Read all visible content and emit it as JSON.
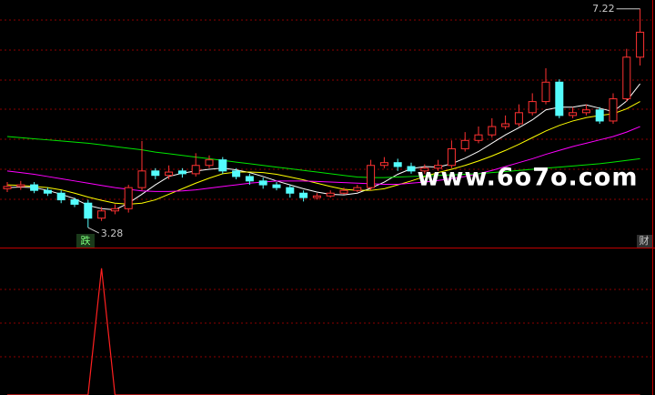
{
  "chart_data": [
    {
      "type": "candlestick",
      "up_color": "#ff3232",
      "down_color": "#54fcfc",
      "ylim": [
        2.92,
        7.38
      ],
      "open": [
        3.98,
        4.02,
        4.05,
        3.95,
        3.9,
        3.78,
        3.72,
        3.45,
        3.58,
        3.62,
        4.0,
        4.3,
        4.22,
        4.3,
        4.25,
        4.4,
        4.5,
        4.3,
        4.2,
        4.12,
        4.05,
        4.0,
        3.9,
        3.82,
        3.85,
        3.9,
        3.95,
        4.0,
        4.4,
        4.45,
        4.38,
        4.3,
        4.35,
        4.4,
        4.7,
        4.85,
        4.95,
        5.1,
        5.15,
        5.35,
        5.55,
        5.9,
        5.3,
        5.35,
        5.4,
        5.2,
        5.6,
        6.35
      ],
      "high": [
        4.1,
        4.12,
        4.1,
        4.0,
        3.95,
        3.82,
        3.78,
        3.65,
        3.7,
        4.05,
        4.84,
        4.35,
        4.4,
        4.35,
        4.62,
        4.58,
        4.55,
        4.35,
        4.25,
        4.18,
        4.1,
        4.05,
        3.95,
        3.9,
        3.95,
        4.0,
        4.05,
        4.5,
        4.55,
        4.52,
        4.45,
        4.42,
        4.5,
        4.85,
        5.0,
        5.1,
        5.25,
        5.3,
        5.5,
        5.7,
        6.15,
        5.95,
        5.45,
        5.5,
        5.45,
        5.7,
        6.5,
        7.22
      ],
      "low": [
        3.92,
        3.96,
        3.9,
        3.85,
        3.72,
        3.65,
        3.28,
        3.4,
        3.52,
        3.55,
        3.95,
        4.15,
        4.15,
        4.18,
        4.2,
        4.35,
        4.25,
        4.15,
        4.05,
        3.98,
        3.95,
        3.82,
        3.75,
        3.78,
        3.82,
        3.88,
        3.92,
        3.95,
        4.35,
        4.3,
        4.25,
        4.25,
        4.3,
        4.35,
        4.65,
        4.8,
        4.9,
        5.05,
        5.1,
        5.3,
        5.5,
        5.25,
        5.25,
        5.3,
        5.15,
        5.15,
        5.55,
        6.2
      ],
      "close": [
        4.02,
        4.05,
        3.95,
        3.9,
        3.78,
        3.7,
        3.45,
        3.58,
        3.62,
        4.0,
        4.3,
        4.22,
        4.28,
        4.25,
        4.4,
        4.5,
        4.3,
        4.2,
        4.12,
        4.05,
        4.0,
        3.9,
        3.82,
        3.85,
        3.9,
        3.95,
        4.0,
        4.4,
        4.45,
        4.38,
        4.3,
        4.35,
        4.4,
        4.7,
        4.85,
        4.95,
        5.1,
        5.15,
        5.35,
        5.55,
        5.9,
        5.3,
        5.35,
        5.4,
        5.2,
        5.6,
        6.35,
        6.8
      ],
      "series": [
        {
          "color": "#ffffff",
          "values": [
            4.0,
            4.01,
            4.0,
            3.95,
            3.88,
            3.8,
            3.68,
            3.62,
            3.6,
            3.72,
            3.88,
            4.05,
            4.2,
            4.26,
            4.3,
            4.33,
            4.35,
            4.32,
            4.27,
            4.2,
            4.12,
            4.05,
            3.98,
            3.92,
            3.88,
            3.87,
            3.9,
            3.99,
            4.1,
            4.24,
            4.34,
            4.38,
            4.37,
            4.43,
            4.53,
            4.65,
            4.8,
            4.95,
            5.08,
            5.22,
            5.4,
            5.45,
            5.45,
            5.49,
            5.43,
            5.37,
            5.56,
            5.87
          ]
        },
        {
          "color": "#ffff00",
          "values": [
            4.05,
            4.04,
            4.02,
            4.0,
            3.96,
            3.9,
            3.83,
            3.77,
            3.72,
            3.7,
            3.72,
            3.78,
            3.88,
            3.98,
            4.08,
            4.17,
            4.25,
            4.28,
            4.28,
            4.27,
            4.24,
            4.19,
            4.14,
            4.08,
            4.02,
            3.97,
            3.95,
            3.95,
            3.98,
            4.05,
            4.12,
            4.2,
            4.27,
            4.33,
            4.4,
            4.48,
            4.57,
            4.67,
            4.78,
            4.9,
            5.02,
            5.12,
            5.2,
            5.26,
            5.3,
            5.33,
            5.42,
            5.55
          ]
        },
        {
          "color": "#ff00ff",
          "values": [
            4.3,
            4.27,
            4.24,
            4.2,
            4.16,
            4.12,
            4.08,
            4.04,
            4.0,
            3.97,
            3.94,
            3.93,
            3.93,
            3.94,
            3.96,
            3.99,
            4.02,
            4.05,
            4.08,
            4.1,
            4.12,
            4.12,
            4.12,
            4.11,
            4.1,
            4.09,
            4.08,
            4.07,
            4.06,
            4.06,
            4.08,
            4.1,
            4.13,
            4.16,
            4.2,
            4.25,
            4.31,
            4.38,
            4.45,
            4.52,
            4.6,
            4.67,
            4.74,
            4.8,
            4.86,
            4.92,
            5.0,
            5.1
          ]
        },
        {
          "color": "#00e600",
          "values": [
            4.92,
            4.9,
            4.88,
            4.86,
            4.84,
            4.82,
            4.8,
            4.77,
            4.74,
            4.71,
            4.68,
            4.64,
            4.61,
            4.58,
            4.55,
            4.52,
            4.49,
            4.46,
            4.43,
            4.4,
            4.37,
            4.34,
            4.31,
            4.28,
            4.25,
            4.22,
            4.19,
            4.18,
            4.18,
            4.19,
            4.2,
            4.21,
            4.22,
            4.23,
            4.24,
            4.25,
            4.27,
            4.29,
            4.31,
            4.33,
            4.35,
            4.37,
            4.39,
            4.41,
            4.43,
            4.46,
            4.49,
            4.52
          ]
        }
      ],
      "annotations": [
        {
          "text": "7.22",
          "value": 7.22,
          "at": "high"
        },
        {
          "text": "3.28",
          "value": 3.28,
          "at": "low"
        }
      ],
      "signal": "跌",
      "badge": "财",
      "watermark": "www.6o7o.com"
    },
    {
      "type": "line",
      "color": "#ff2020",
      "ylim": [
        0,
        1.15
      ],
      "values": [
        0,
        0,
        0,
        0,
        0,
        0,
        0,
        1,
        0,
        0,
        0,
        0,
        0,
        0,
        0,
        0,
        0,
        0,
        0,
        0,
        0,
        0,
        0,
        0,
        0,
        0,
        0,
        0,
        0,
        0,
        0,
        0,
        0,
        0,
        0,
        0,
        0,
        0,
        0,
        0,
        0,
        0,
        0,
        0,
        0,
        0,
        0,
        0
      ]
    }
  ]
}
